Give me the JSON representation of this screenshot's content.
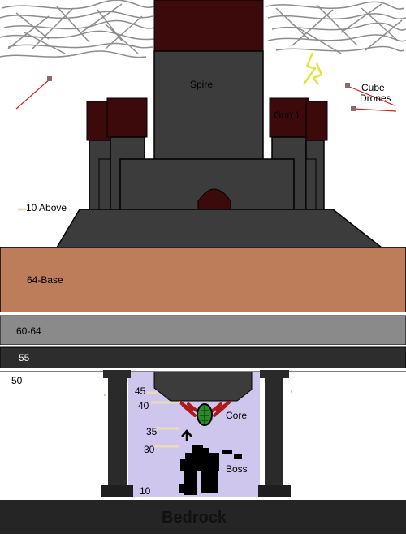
{
  "labels": {
    "spire": "Spire",
    "gun": "Gun 1",
    "cube_drones_line1": "Cube",
    "cube_drones_line2": "Drones",
    "above": "10 Above",
    "base": "64-Base",
    "layer_60_64": "60-64",
    "layer_55": "55",
    "layer_50": "50",
    "core": "Core",
    "boss": "Boss",
    "bedrock": "Bedrock",
    "depth_45": "45",
    "depth_40": "40",
    "depth_35": "35",
    "depth_30": "30",
    "depth_10": "10"
  },
  "colors": {
    "sky": "#ffffff",
    "cloud": "#8a8a8a",
    "tower_dark": "#3c3c3c",
    "tower_cap": "#3d0a0c",
    "dirt": "#bd7c5a",
    "layer_gray": "#8a8a8a",
    "layer_dark": "#2d2d2d",
    "chamber": "#cfc6ee",
    "bedrock": "#252525",
    "lightning": "#e8e040",
    "drone_line": "#cc2222",
    "marker_line": "#e8dcb8",
    "core_green": "#2a8a2a",
    "core_red": "#aa1a1a"
  }
}
